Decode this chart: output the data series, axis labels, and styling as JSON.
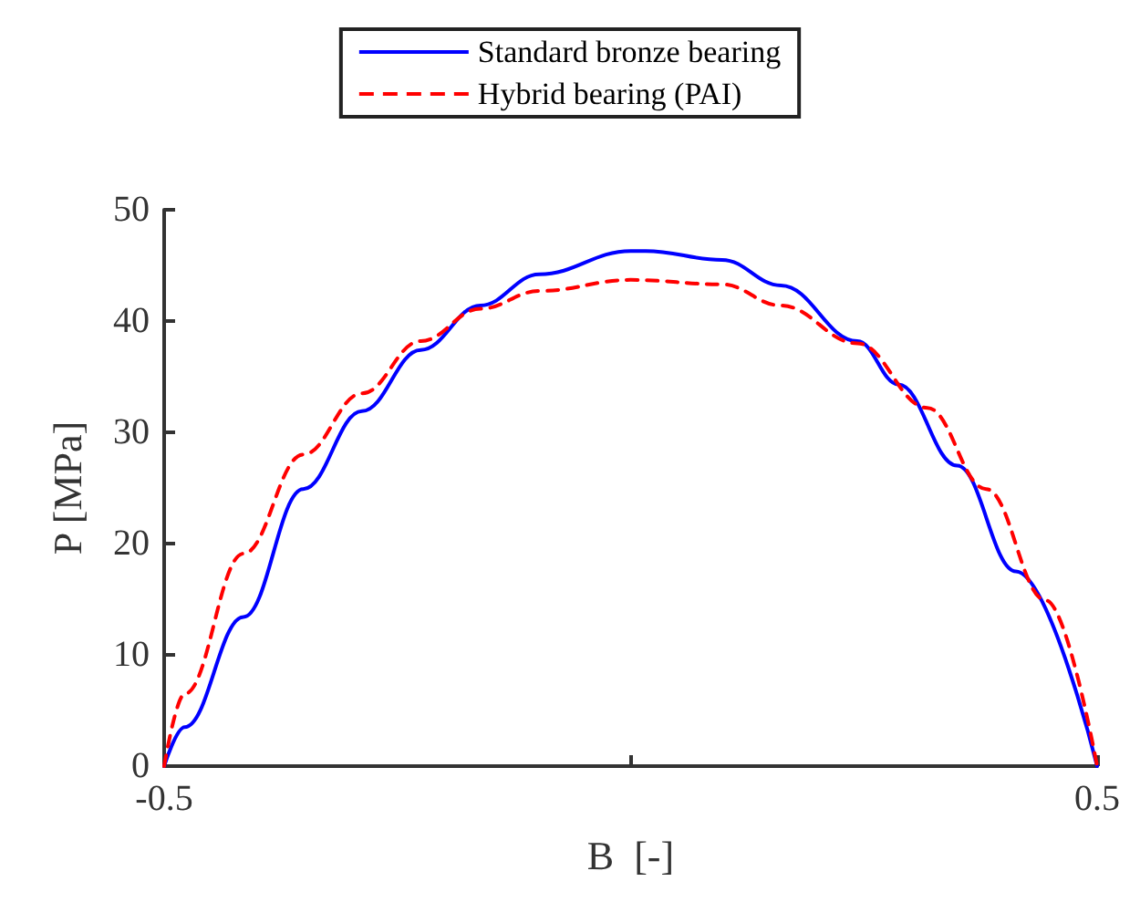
{
  "chart_data": {
    "type": "line",
    "xlabel": "B  [-]",
    "ylabel": "P [MPa]",
    "xlim": [
      -0.5,
      0.5
    ],
    "xticks": [
      -0.5,
      {
        "value": 0,
        "label": null
      },
      0.5
    ],
    "ylim": [
      0,
      50
    ],
    "yticks": [
      0,
      10,
      20,
      30,
      40,
      50
    ],
    "grid": false,
    "legend": "top",
    "marker": "none",
    "series": [
      {
        "name": "Standard bronze bearing",
        "color": "#0000ff",
        "line_style": "solid",
        "x": [
          -0.5,
          -0.478,
          -0.415,
          -0.351,
          -0.288,
          -0.225,
          -0.161,
          -0.098,
          0,
          0.016,
          0.098,
          0.161,
          0.243,
          0.287,
          0.35,
          0.413,
          0.5
        ],
        "values": [
          0,
          3.5,
          13.4,
          24.9,
          31.9,
          37.4,
          41.4,
          44.2,
          46.3,
          46.3,
          45.5,
          43.2,
          38.2,
          34.3,
          27.0,
          17.5,
          0
        ]
      },
      {
        "name": "Hybrid bearing (PAI)",
        "color": "#ff0000",
        "line_style": "dashed",
        "x": [
          -0.5,
          -0.478,
          -0.415,
          -0.351,
          -0.288,
          -0.225,
          -0.161,
          -0.098,
          0,
          0.098,
          0.161,
          0.243,
          0.318,
          0.381,
          0.445,
          0.5
        ],
        "values": [
          0,
          6.5,
          19.1,
          28.0,
          33.5,
          38.2,
          41.1,
          42.7,
          43.7,
          43.3,
          41.4,
          38.0,
          32.2,
          24.9,
          14.9,
          0
        ]
      }
    ]
  }
}
